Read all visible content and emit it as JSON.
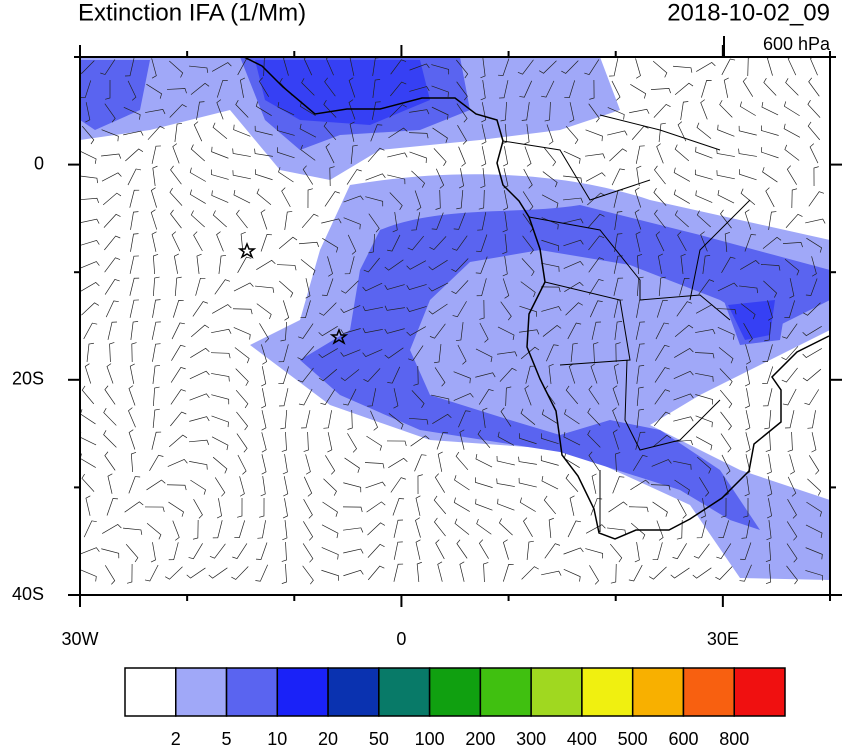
{
  "header": {
    "title": "Extinction IFA (1/Mm)",
    "date": "2018-10-02_09",
    "level": "600 hPa"
  },
  "map": {
    "xlim": [
      -30,
      40
    ],
    "ylim": [
      -40,
      10
    ],
    "xticks": [
      {
        "value": -30,
        "label": "30W"
      },
      0,
      {
        "value": 30,
        "label": "30E"
      }
    ],
    "yticks": [
      0,
      {
        "value": -20,
        "label": "20S"
      },
      {
        "value": -40,
        "label": "40S"
      }
    ],
    "x_minor_ticks": [
      -20,
      -10,
      10,
      20,
      40
    ],
    "y_minor_ticks": [
      -30,
      -10,
      10
    ]
  },
  "colorbar": {
    "levels": [
      2,
      5,
      10,
      20,
      50,
      100,
      200,
      300,
      400,
      500,
      600,
      800
    ],
    "colors": [
      "#ffffff",
      "#a0a8f8",
      "#5a64f0",
      "#1a22f8",
      "#0a32b0",
      "#087a68",
      "#10a010",
      "#40c010",
      "#a0d820",
      "#f0f010",
      "#f8b000",
      "#f86010",
      "#f01010"
    ]
  }
}
